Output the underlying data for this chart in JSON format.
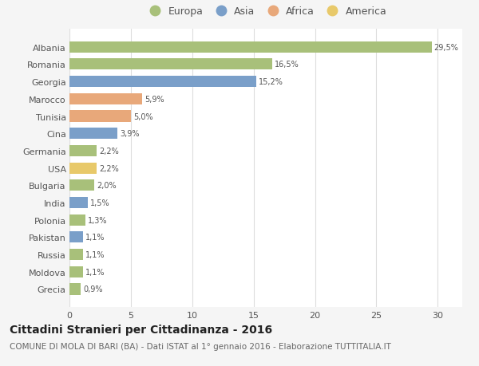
{
  "categories": [
    "Grecia",
    "Moldova",
    "Russia",
    "Pakistan",
    "Polonia",
    "India",
    "Bulgaria",
    "USA",
    "Germania",
    "Cina",
    "Tunisia",
    "Marocco",
    "Georgia",
    "Romania",
    "Albania"
  ],
  "values": [
    0.9,
    1.1,
    1.1,
    1.1,
    1.3,
    1.5,
    2.0,
    2.2,
    2.2,
    3.9,
    5.0,
    5.9,
    15.2,
    16.5,
    29.5
  ],
  "labels": [
    "0,9%",
    "1,1%",
    "1,1%",
    "1,1%",
    "1,3%",
    "1,5%",
    "2,0%",
    "2,2%",
    "2,2%",
    "3,9%",
    "5,0%",
    "5,9%",
    "15,2%",
    "16,5%",
    "29,5%"
  ],
  "colors": [
    "#a8c07a",
    "#a8c07a",
    "#a8c07a",
    "#7a9fc9",
    "#a8c07a",
    "#7a9fc9",
    "#a8c07a",
    "#e8c96a",
    "#a8c07a",
    "#7a9fc9",
    "#e8a87a",
    "#e8a87a",
    "#7a9fc9",
    "#a8c07a",
    "#a8c07a"
  ],
  "continent_colors": {
    "Europa": "#a8c07a",
    "Asia": "#7a9fc9",
    "Africa": "#e8a87a",
    "America": "#e8c96a"
  },
  "xlim": [
    0,
    32
  ],
  "xticks": [
    0,
    5,
    10,
    15,
    20,
    25,
    30
  ],
  "title": "Cittadini Stranieri per Cittadinanza - 2016",
  "subtitle": "COMUNE DI MOLA DI BARI (BA) - Dati ISTAT al 1° gennaio 2016 - Elaborazione TUTTITALIA.IT",
  "title_fontsize": 10,
  "subtitle_fontsize": 7.5,
  "background_color": "#f5f5f5",
  "bar_bg_color": "#ffffff",
  "grid_color": "#dddddd"
}
